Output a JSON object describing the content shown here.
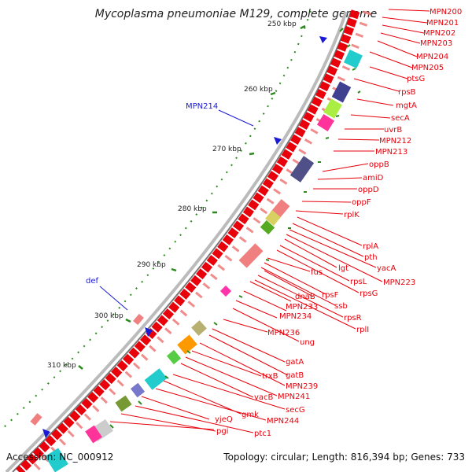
{
  "header": {
    "title": "Mycoplasma pneumoniae M129, complete genome"
  },
  "footer": {
    "accession": "Accession: NC_000912",
    "summary": "Topology: circular; Length: 816,394 bp; Genes: 733"
  },
  "scale_ticks": [
    "250 kbp",
    "260 kbp",
    "270 kbp",
    "280 kbp",
    "290 kbp",
    "300 kbp",
    "310 kbp"
  ],
  "outer_labels": [
    "MPN214",
    "def"
  ],
  "gene_labels": [
    "MPN200",
    "MPN201",
    "MPN202",
    "MPN203",
    "MPN204",
    "MPN205",
    "ptsG",
    "rpsB",
    "mgtA",
    "secA",
    "uvrB",
    "MPN212",
    "MPN213",
    "oppB",
    "amiD",
    "oppD",
    "oppF",
    "rplK",
    "rplA",
    "pth",
    "yacA",
    "MPN223",
    "lgt",
    "rpsL",
    "rpsG",
    "fus",
    "rpsF",
    "ssb",
    "dnaB",
    "MPN233",
    "MPN234",
    "rpsR",
    "rplI",
    "MPN236",
    "ung",
    "gatA",
    "gatB",
    "trxB",
    "MPN239",
    "MPN241",
    "vacB",
    "secG",
    "gmk",
    "MPN244",
    "yjeQ",
    "ptc1",
    "pgi"
  ],
  "colors": {
    "gene_arrow": "#e8000b",
    "label": "#e8000b",
    "outer_label": "#1a1ad6",
    "tick": "#2c8a1e",
    "backbone": "#8a8a8a"
  }
}
